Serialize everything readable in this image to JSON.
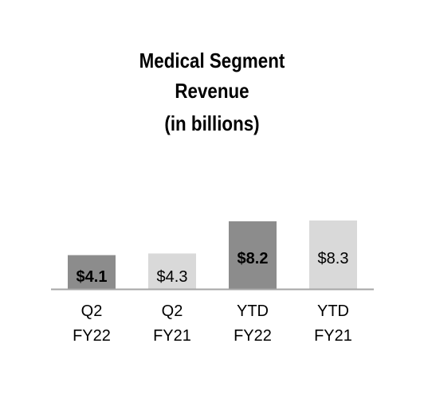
{
  "chart_data": {
    "type": "bar",
    "title_lines": [
      "Medical Segment",
      "Revenue",
      "(in billions)"
    ],
    "categories": [
      [
        "Q2",
        "FY22"
      ],
      [
        "Q2",
        "FY21"
      ],
      [
        "YTD",
        "FY22"
      ],
      [
        "YTD",
        "FY21"
      ]
    ],
    "values": [
      4.1,
      4.3,
      8.2,
      8.3
    ],
    "value_labels": [
      "$4.1",
      "$4.3",
      "$8.2",
      "$8.3"
    ],
    "bold_labels": [
      true,
      false,
      true,
      false
    ],
    "bar_colors": [
      "#8c8c8c",
      "#d9d9d9",
      "#8c8c8c",
      "#d9d9d9"
    ],
    "axis_color": "#a6a6a6",
    "ylim": [
      0,
      8.3
    ],
    "grid": false,
    "legend": "none"
  }
}
